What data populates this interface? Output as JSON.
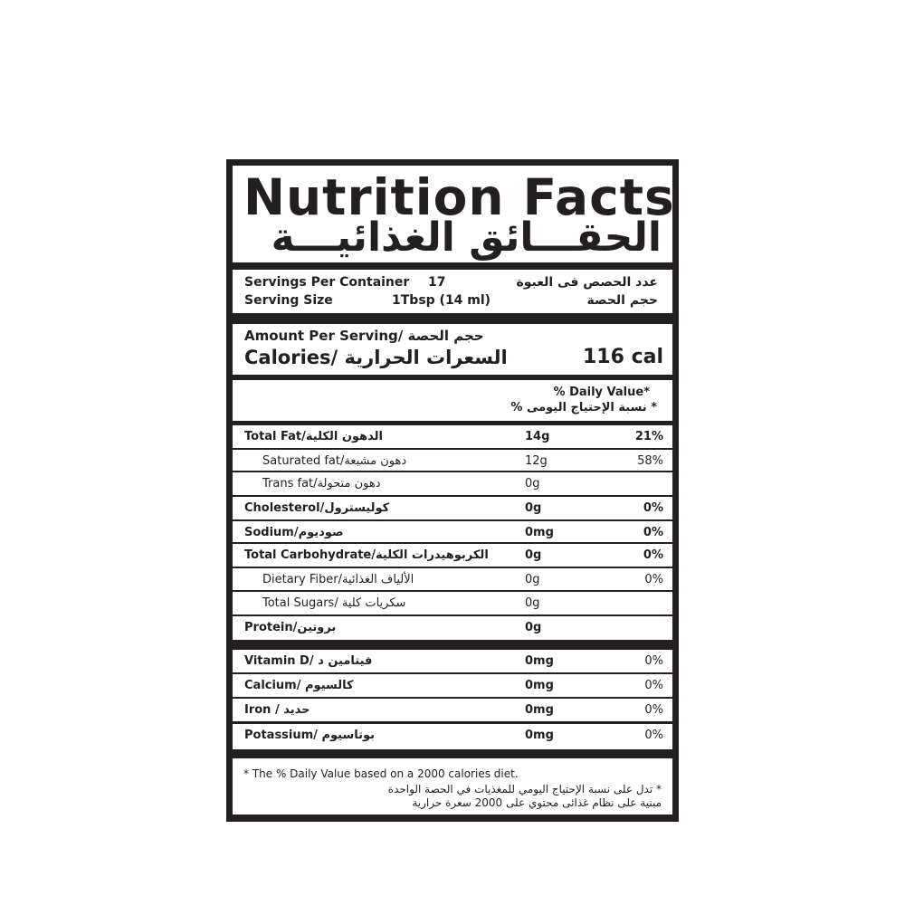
{
  "title": {
    "en": "Nutrition Facts",
    "ar": "الحقـــائق الغذائيـــة"
  },
  "servings": {
    "per_container_label": "Servings Per Container",
    "per_container_value": "17",
    "per_container_ar": "عدد الحصص فى العبوة",
    "size_label": "Serving Size",
    "size_value": "1Tbsp (14 ml)",
    "size_ar": "حجم الحصة"
  },
  "amount": {
    "label": "Amount Per Serving/",
    "label_ar": "حجم الحصة",
    "calories_label": "Calories/",
    "calories_ar": "السعرات الحرارية",
    "calories_value": "116 cal"
  },
  "daily_value_header": {
    "en": "% Daily Value*",
    "ar": "* نسبة الإحتياج اليومى %"
  },
  "nutrients": [
    {
      "en": "Total Fat/",
      "ar": "الدهون الكلية",
      "amount": "14g",
      "dv": "21%",
      "bold": true
    },
    {
      "en": "Saturated fat/",
      "ar": "دهون مشبعة",
      "amount": "12g",
      "dv": "58%",
      "sub": true
    },
    {
      "en": "Trans fat/",
      "ar": "دهون متحولة",
      "amount": "0g",
      "dv": "",
      "sub": true
    },
    {
      "en": "Cholesterol/",
      "ar": "كوليسترول",
      "amount": "0g",
      "dv": "0%",
      "bold": true
    },
    {
      "en": "Sodium/",
      "ar": "صوديوم",
      "amount": "0mg",
      "dv": "0%",
      "bold": true
    },
    {
      "en": "Total Carbohydrate/",
      "ar": "الكربوهيدرات الكلية",
      "amount": "0g",
      "dv": "0%",
      "bold": true
    },
    {
      "en": "Dietary Fiber/",
      "ar": "الألياف الغذائية",
      "amount": "0g",
      "dv": "0%",
      "sub": true
    },
    {
      "en": "Total Sugars/ ",
      "ar": "سكريات كلية",
      "amount": "0g",
      "dv": "",
      "sub": true
    },
    {
      "en": "Protein/",
      "ar": "بروتين",
      "amount": "0g",
      "dv": "",
      "bold": true
    }
  ],
  "minerals": [
    {
      "en": "Vitamin D/ ",
      "ar": "فيتامين د",
      "amount": "0mg",
      "dv": "0%"
    },
    {
      "en": "Calcium/ ",
      "ar": "كالسيوم",
      "amount": "0mg",
      "dv": "0%"
    },
    {
      "en": "Iron / ",
      "ar": "حديد",
      "amount": "0mg",
      "dv": "0%"
    },
    {
      "en": "Potassium/ ",
      "ar": "بوتاسيوم",
      "amount": "0mg",
      "dv": "0%"
    }
  ],
  "footnote": {
    "en": "* The % Daily Value based on a 2000 calories diet.",
    "ar_line1": "* تدل على نسبة الإحتياج اليومي للمغذيات في الحصة الواحدة",
    "ar_line2": "مبنية على نظام غذائى محتوي على 2000 سعرة حرارية"
  },
  "colors": {
    "ink": "#231f20",
    "background": "#ffffff"
  }
}
